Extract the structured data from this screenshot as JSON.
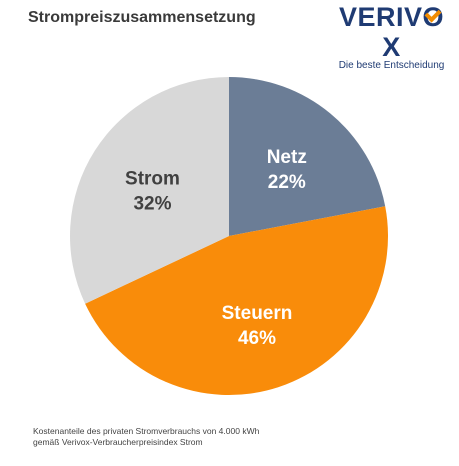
{
  "header": {
    "title": "Strompreiszusammensetzung"
  },
  "brand": {
    "name": "VERIVOX",
    "tagline": "Die beste Entscheidung",
    "color": "#1f3b73",
    "accent": "#f28c00"
  },
  "chart_data": {
    "type": "pie",
    "title": "Strompreiszusammensetzung",
    "unit": "%",
    "start_angle_deg": 0,
    "direction": "clockwise",
    "slices": [
      {
        "label": "Netz",
        "value": 22,
        "value_label": "22%",
        "color": "#6b7d96",
        "text_color": "#ffffff"
      },
      {
        "label": "Steuern",
        "value": 46,
        "value_label": "46%",
        "color": "#f98c0a",
        "text_color": "#ffffff"
      },
      {
        "label": "Strom",
        "value": 32,
        "value_label": "32%",
        "color": "#d8d8d8",
        "text_color": "#404040"
      }
    ]
  },
  "footnote": {
    "line1": "Kostenanteile des privaten Stromverbrauchs von 4.000 kWh",
    "line2": "gemäß Verivox-Verbraucherpreisindex Strom"
  }
}
